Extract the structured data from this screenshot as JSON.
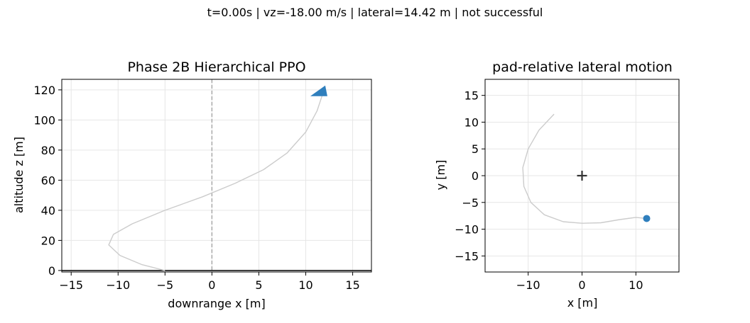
{
  "suptitle": "t=0.00s | vz=-18.00 m/s | lateral=14.42 m | not successful",
  "colors": {
    "accent": "#2f7fbd",
    "trajectory": "#cccccc",
    "grid": "#e6e6e6",
    "pad_line": "#999999",
    "ground": "#000000",
    "pad_marker": "#333333"
  },
  "chart_data": [
    {
      "type": "line",
      "title": "Phase 2B Hierarchical PPO",
      "xlabel": "downrange x [m]",
      "ylabel": "altitude z [m]",
      "xlim": [
        -16,
        17
      ],
      "ylim": [
        -1,
        127
      ],
      "xticks": [
        -15,
        -10,
        -5,
        0,
        5,
        10,
        15
      ],
      "yticks": [
        0,
        20,
        40,
        60,
        80,
        100,
        120
      ],
      "grid": true,
      "ground_z": 0,
      "pad_x": 0,
      "trajectory": {
        "x": [
          -5,
          -7.5,
          -9.8,
          -11.0,
          -10.5,
          -8.5,
          -5,
          -1,
          2.5,
          5.5,
          8,
          10,
          11.2,
          12.0
        ],
        "z": [
          0,
          4,
          10,
          17,
          24,
          31,
          40,
          49,
          58,
          67,
          78,
          92,
          106,
          121
        ]
      },
      "vehicle": {
        "x": 12.0,
        "z": 121
      }
    },
    {
      "type": "line",
      "title": "pad-relative lateral motion",
      "xlabel": "x [m]",
      "ylabel": "y [m]",
      "xlim": [
        -18,
        18
      ],
      "ylim": [
        -18,
        18
      ],
      "xticks": [
        -10,
        0,
        10
      ],
      "yticks": [
        -15,
        -10,
        -5,
        0,
        5,
        10,
        15
      ],
      "grid": true,
      "pad": {
        "x": 0,
        "y": 0
      },
      "trajectory": {
        "x": [
          -5.2,
          -8,
          -10,
          -11,
          -10.8,
          -9.5,
          -7,
          -3.5,
          0,
          3.5,
          7,
          10,
          12
        ],
        "y": [
          11.5,
          8.5,
          5,
          1.5,
          -2,
          -5,
          -7.3,
          -8.6,
          -8.9,
          -8.8,
          -8.2,
          -7.8,
          -8
        ]
      },
      "current": {
        "x": 12,
        "y": -8
      }
    }
  ]
}
